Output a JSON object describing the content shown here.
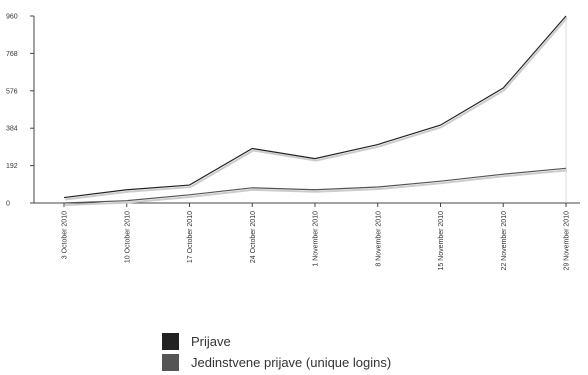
{
  "chart_data": {
    "type": "line",
    "x": [
      "3 October 2010",
      "10 October 2010",
      "17 October 2010",
      "24 October 2010",
      "1 November 2010",
      "8 November 2010",
      "15 November 2010",
      "22 November 2010",
      "29 November 2010"
    ],
    "yticks": [
      "0",
      "192",
      "384",
      "576",
      "768",
      "960"
    ],
    "ylim": [
      0,
      960
    ],
    "grid": false,
    "legend_position": "bottom",
    "series": [
      {
        "name": "Prijave",
        "values": [
          28,
          68,
          92,
          280,
          228,
          300,
          400,
          590,
          960
        ],
        "color": "#222222"
      },
      {
        "name": "Jedinstvene prijave (unique logins)",
        "values": [
          0,
          12,
          42,
          78,
          68,
          82,
          112,
          148,
          178
        ],
        "color": "#555555"
      }
    ]
  }
}
